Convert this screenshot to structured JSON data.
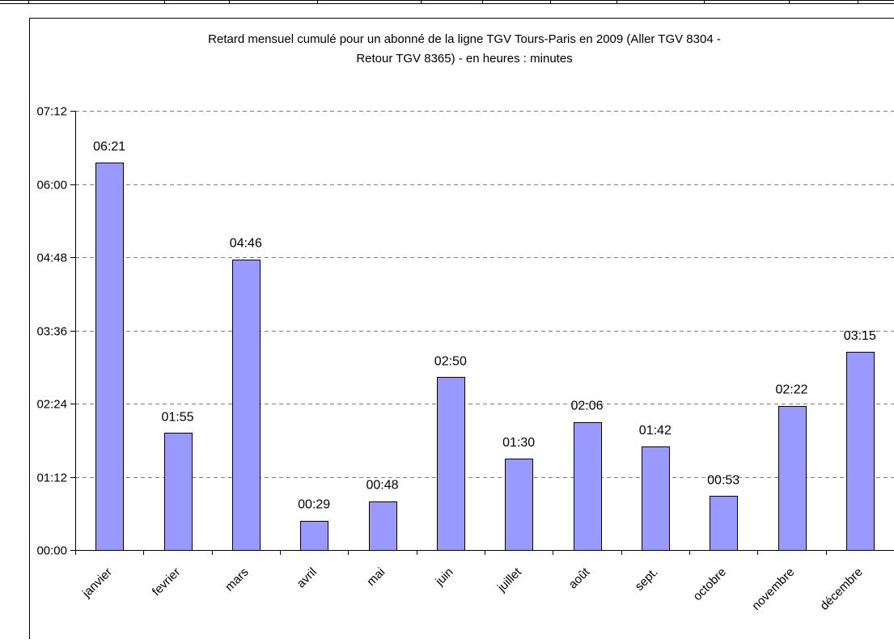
{
  "chart_data": {
    "type": "bar",
    "title_line1": "Retard mensuel cumulé pour un abonné de la ligne TGV Tours-Paris en 2009 (Aller TGV 8304 -",
    "title_line2": "Retour TGV 8365) - en heures : minutes",
    "xlabel": "",
    "ylabel": "",
    "categories": [
      "janvier",
      "fevrier",
      "mars",
      "avril",
      "mai",
      "juin",
      "juillet",
      "août",
      "sept.",
      "octobre",
      "novembre",
      "décembre"
    ],
    "values_minutes": [
      381,
      115,
      286,
      29,
      48,
      170,
      90,
      126,
      102,
      53,
      142,
      195
    ],
    "value_labels": [
      "06:21",
      "01:55",
      "04:46",
      "00:29",
      "00:48",
      "02:50",
      "01:30",
      "02:06",
      "01:42",
      "00:53",
      "02:22",
      "03:15"
    ],
    "y_ticks": [
      "00:00",
      "01:12",
      "02:24",
      "03:36",
      "04:48",
      "06:00",
      "07:12"
    ],
    "ylim_minutes": [
      0,
      432
    ],
    "y_tick_step_minutes": 72,
    "grid": "horizontal dashed",
    "legend": "none",
    "colors": {
      "bar_fill": "#9999ff",
      "bar_stroke": "#000000",
      "grid": "#808080",
      "axis": "#000000"
    }
  }
}
